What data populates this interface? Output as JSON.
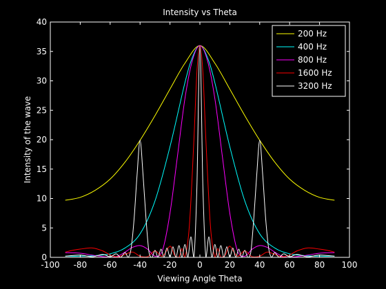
{
  "chart_data": {
    "type": "line",
    "title": "Intensity vs Theta",
    "xlabel": "Viewing Angle Theta",
    "ylabel": "Intensity of the wave",
    "xlim": [
      -100,
      100
    ],
    "ylim": [
      0,
      40
    ],
    "xticks": [
      -100,
      -80,
      -60,
      -40,
      -20,
      0,
      20,
      40,
      60,
      80,
      100
    ],
    "yticks": [
      0,
      5,
      10,
      15,
      20,
      25,
      30,
      35,
      40
    ],
    "grid": false,
    "legend_position": "top-right",
    "background": "#000000",
    "axis_color": "#ffffff",
    "series": [
      {
        "name": "200 Hz",
        "color": "#ffff00",
        "x": [
          -90,
          -80,
          -70,
          -60,
          -50,
          -40,
          -30,
          -20,
          -10,
          0,
          10,
          20,
          30,
          40,
          50,
          60,
          70,
          80,
          90
        ],
        "y": [
          9.7,
          10.2,
          11.4,
          13.3,
          16.2,
          19.9,
          24.1,
          28.6,
          33.0,
          36.0,
          33.0,
          28.6,
          24.1,
          19.9,
          16.2,
          13.3,
          11.4,
          10.2,
          9.7
        ]
      },
      {
        "name": "400 Hz",
        "color": "#00ffff",
        "x": [
          -90,
          -80,
          -70,
          -60,
          -50,
          -40,
          -30,
          -20,
          -10,
          -5,
          0,
          5,
          10,
          20,
          30,
          40,
          50,
          60,
          70,
          80,
          90
        ],
        "y": [
          0.2,
          0.2,
          0.3,
          0.6,
          1.6,
          4.0,
          9.6,
          18.8,
          29.7,
          34.0,
          36.0,
          34.0,
          29.7,
          18.8,
          9.6,
          4.0,
          1.6,
          0.6,
          0.3,
          0.2,
          0.2
        ]
      },
      {
        "name": "800 Hz",
        "color": "#ff00ff",
        "x": [
          -90,
          -80,
          -70,
          -60,
          -55,
          -50,
          -45,
          -40,
          -35,
          -30,
          -25,
          -20,
          -15,
          -10,
          -5,
          0,
          5,
          10,
          15,
          20,
          25,
          30,
          35,
          40,
          45,
          50,
          55,
          60,
          70,
          80,
          90
        ],
        "y": [
          0.8,
          0.7,
          0.3,
          0.0,
          0.2,
          0.9,
          1.7,
          2.0,
          1.4,
          0.2,
          1.2,
          7.5,
          17.2,
          27.0,
          33.5,
          36.0,
          33.5,
          27.0,
          17.2,
          7.5,
          1.2,
          0.2,
          1.4,
          2.0,
          1.7,
          0.9,
          0.2,
          0.0,
          0.3,
          0.7,
          0.8
        ]
      },
      {
        "name": "1600 Hz",
        "color": "#ff0000",
        "x": [
          -90,
          -85,
          -80,
          -72,
          -65,
          -60,
          -55,
          -50,
          -45,
          -40,
          -35,
          -30,
          -25,
          -20,
          -17,
          -14,
          -12,
          -10,
          -7,
          -4,
          -2,
          0,
          2,
          4,
          7,
          10,
          12,
          14,
          17,
          20,
          25,
          30,
          35,
          40,
          45,
          50,
          55,
          60,
          65,
          72,
          80,
          85,
          90
        ],
        "y": [
          0.9,
          1.2,
          1.4,
          1.6,
          1.1,
          0.4,
          0.1,
          0.5,
          0.9,
          0.2,
          0.1,
          1.1,
          0.2,
          1.9,
          0.4,
          0.0,
          1.5,
          0.0,
          5.5,
          20.0,
          31.5,
          36.0,
          31.5,
          20.0,
          5.5,
          0.0,
          1.5,
          0.0,
          0.4,
          1.9,
          0.2,
          1.1,
          0.1,
          0.2,
          0.9,
          0.5,
          0.1,
          0.4,
          1.1,
          1.6,
          1.4,
          1.2,
          0.9
        ]
      },
      {
        "name": "3200 Hz",
        "color": "#ffffff",
        "x": [
          -90,
          -80,
          -72,
          -65,
          -60,
          -56,
          -53,
          -50,
          -48,
          -46,
          -44,
          -42,
          -40,
          -38,
          -36,
          -34,
          -32,
          -30,
          -28,
          -26,
          -24,
          -22,
          -20,
          -18,
          -16,
          -14,
          -12,
          -10,
          -8,
          -6,
          -4,
          -2,
          0,
          2,
          4,
          6,
          8,
          10,
          12,
          14,
          16,
          18,
          20,
          22,
          24,
          26,
          28,
          30,
          32,
          34,
          36,
          38,
          40,
          42,
          44,
          46,
          48,
          50,
          53,
          56,
          60,
          65,
          72,
          80,
          90
        ],
        "y": [
          0.2,
          0.4,
          0.1,
          0.5,
          0.1,
          0.6,
          0.0,
          0.8,
          0.0,
          1.5,
          6.5,
          14.0,
          19.9,
          14.0,
          6.5,
          0.8,
          0.0,
          1.2,
          0.0,
          1.4,
          0.0,
          1.6,
          0.0,
          1.8,
          0.0,
          2.0,
          0.0,
          2.2,
          0.0,
          3.5,
          0.0,
          12.0,
          36.0,
          12.0,
          0.0,
          3.5,
          0.0,
          2.2,
          0.0,
          2.0,
          0.0,
          1.8,
          0.0,
          1.6,
          0.0,
          1.4,
          0.0,
          1.2,
          0.0,
          0.8,
          6.5,
          14.0,
          19.9,
          14.0,
          6.5,
          1.5,
          0.0,
          0.8,
          0.0,
          0.6,
          0.1,
          0.5,
          0.1,
          0.4,
          0.2
        ]
      }
    ]
  }
}
